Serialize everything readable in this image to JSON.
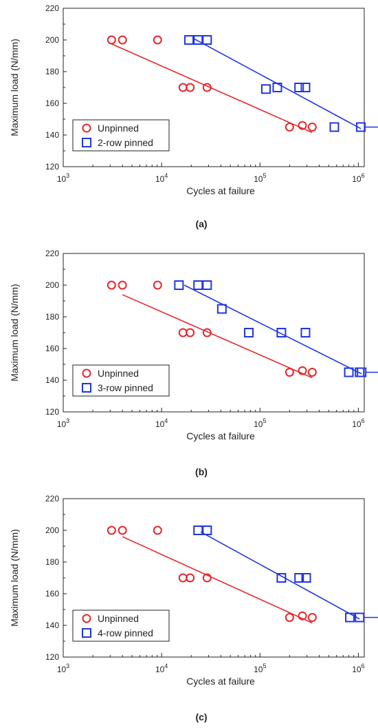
{
  "chart_data": [
    {
      "type": "scatter",
      "panel_label": "(a)",
      "xlabel": "Cycles at failure",
      "ylabel": "Maximum load (N/mm)",
      "xscale": "log",
      "xlim": [
        1000,
        1000000
      ],
      "ylim": [
        120,
        220
      ],
      "xticks": [
        1000,
        10000,
        100000,
        1000000
      ],
      "xtick_labels": [
        {
          "base": "10",
          "exp": "3"
        },
        {
          "base": "10",
          "exp": "4"
        },
        {
          "base": "10",
          "exp": "5"
        },
        {
          "base": "10",
          "exp": "6"
        }
      ],
      "yticks": [
        120,
        140,
        160,
        180,
        200,
        220
      ],
      "legend_position": "bottom-left",
      "series": [
        {
          "name": "Unpinned",
          "marker": "circle",
          "color": "#e8262a",
          "points": [
            [
              3100,
              200
            ],
            [
              4000,
              200
            ],
            [
              9100,
              200
            ],
            [
              16500,
              170
            ],
            [
              19500,
              170
            ],
            [
              29000,
              170
            ],
            [
              200000,
              145
            ],
            [
              270000,
              146
            ],
            [
              340000,
              145
            ]
          ],
          "fit": [
            [
              3100,
              197.5
            ],
            [
              340000,
              141.5
            ]
          ]
        },
        {
          "name": "2-row pinned",
          "marker": "square",
          "color": "#1f35e0",
          "points": [
            [
              19000,
              200
            ],
            [
              23500,
              200
            ],
            [
              29000,
              200
            ],
            [
              115000,
              169
            ],
            [
              150000,
              170
            ],
            [
              250000,
              170
            ],
            [
              290000,
              170
            ],
            [
              570000,
              145
            ],
            [
              1060000,
              145
            ]
          ],
          "fit": [
            [
              21000,
              201
            ],
            [
              1060000,
              144
            ]
          ],
          "runout_arrow_at": [
            1060000,
            145
          ]
        }
      ]
    },
    {
      "type": "scatter",
      "panel_label": "(b)",
      "xlabel": "Cycles at failure",
      "ylabel": "Maximum load (N/mm)",
      "xscale": "log",
      "xlim": [
        1000,
        1000000
      ],
      "ylim": [
        120,
        220
      ],
      "xticks": [
        1000,
        10000,
        100000,
        1000000
      ],
      "xtick_labels": [
        {
          "base": "10",
          "exp": "3"
        },
        {
          "base": "10",
          "exp": "4"
        },
        {
          "base": "10",
          "exp": "5"
        },
        {
          "base": "10",
          "exp": "6"
        }
      ],
      "yticks": [
        120,
        140,
        160,
        180,
        200,
        220
      ],
      "legend_position": "bottom-left",
      "series": [
        {
          "name": "Unpinned",
          "marker": "circle",
          "color": "#e8262a",
          "points": [
            [
              3100,
              200
            ],
            [
              4000,
              200
            ],
            [
              9100,
              200
            ],
            [
              16500,
              170
            ],
            [
              19500,
              170
            ],
            [
              29000,
              170
            ],
            [
              200000,
              145
            ],
            [
              270000,
              146
            ],
            [
              340000,
              145
            ]
          ],
          "fit": [
            [
              4000,
              194
            ],
            [
              340000,
              141.5
            ]
          ]
        },
        {
          "name": "3-row pinned",
          "marker": "square",
          "color": "#1f35e0",
          "points": [
            [
              15000,
              200
            ],
            [
              23500,
              200
            ],
            [
              29000,
              200
            ],
            [
              41000,
              185
            ],
            [
              77000,
              170
            ],
            [
              165000,
              170
            ],
            [
              290000,
              170
            ],
            [
              800000,
              145
            ],
            [
              1030000,
              145
            ],
            [
              1080000,
              145
            ]
          ],
          "fit": [
            [
              17000,
              200
            ],
            [
              1080000,
              144
            ]
          ],
          "runout_arrow_at": [
            1080000,
            145
          ]
        }
      ]
    },
    {
      "type": "scatter",
      "panel_label": "(c)",
      "xlabel": "Cycles at failure",
      "ylabel": "Maximum load (N/mm)",
      "xscale": "log",
      "xlim": [
        1000,
        1000000
      ],
      "ylim": [
        120,
        220
      ],
      "xticks": [
        1000,
        10000,
        100000,
        1000000
      ],
      "xtick_labels": [
        {
          "base": "10",
          "exp": "3"
        },
        {
          "base": "10",
          "exp": "4"
        },
        {
          "base": "10",
          "exp": "5"
        },
        {
          "base": "10",
          "exp": "6"
        }
      ],
      "yticks": [
        120,
        140,
        160,
        180,
        200,
        220
      ],
      "legend_position": "bottom-left",
      "series": [
        {
          "name": "Unpinned",
          "marker": "circle",
          "color": "#e8262a",
          "points": [
            [
              3100,
              200
            ],
            [
              4000,
              200
            ],
            [
              9100,
              200
            ],
            [
              16500,
              170
            ],
            [
              19500,
              170
            ],
            [
              29000,
              170
            ],
            [
              200000,
              145
            ],
            [
              270000,
              146
            ],
            [
              340000,
              145
            ]
          ],
          "fit": [
            [
              4000,
              196
            ],
            [
              340000,
              141.5
            ]
          ]
        },
        {
          "name": "4-row pinned",
          "marker": "square",
          "color": "#1f35e0",
          "points": [
            [
              23500,
              200
            ],
            [
              29000,
              200
            ],
            [
              165000,
              170
            ],
            [
              250000,
              170
            ],
            [
              295000,
              170
            ],
            [
              820000,
              145
            ],
            [
              1030000,
              145
            ]
          ],
          "fit": [
            [
              25000,
              199
            ],
            [
              1030000,
              144
            ]
          ],
          "runout_arrow_at": [
            1030000,
            145
          ]
        }
      ]
    }
  ]
}
